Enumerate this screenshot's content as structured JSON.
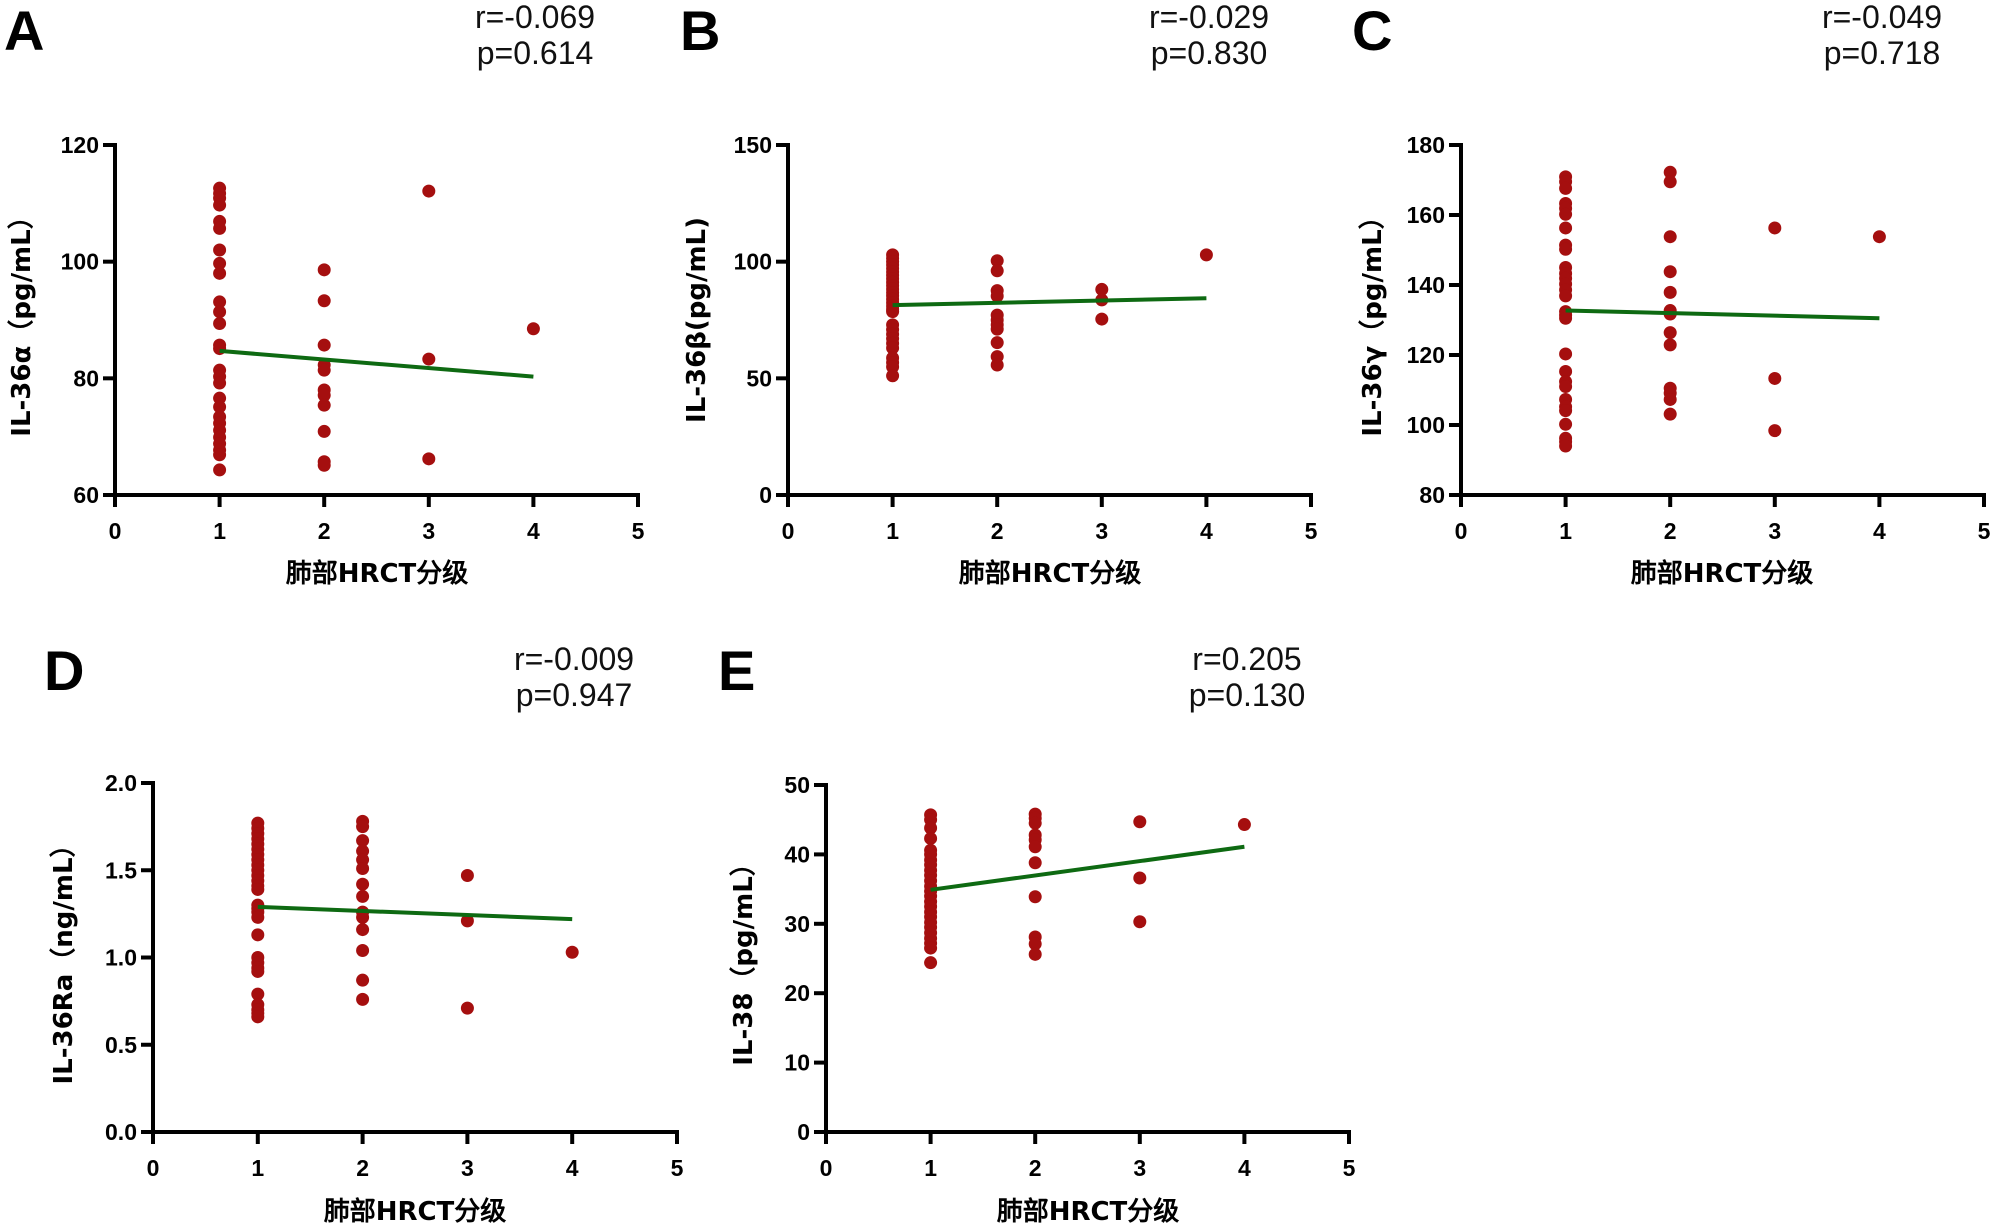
{
  "figure": {
    "colors": {
      "point": "#a50f0f",
      "fit_line": "#0e6a12",
      "axis": "#000000"
    }
  },
  "chart_data": [
    {
      "id": "A",
      "type": "scatter",
      "panel_label": "A",
      "title": "",
      "stats": {
        "r": "r=-0.069",
        "p": "p=0.614"
      },
      "xlabel": "肺部HRCT分级",
      "ylabel": "IL-36α（pg/mL）",
      "xlim": [
        0,
        5
      ],
      "ylim": [
        60,
        120
      ],
      "xticks": [
        0,
        1,
        2,
        3,
        4,
        5
      ],
      "yticks": [
        60,
        80,
        100,
        120
      ],
      "ytick_labels": [
        "60",
        "80",
        "100",
        "120"
      ],
      "grid": false,
      "points": {
        "1": [
          112.6,
          111.7,
          110.9,
          109.7,
          106.9,
          105.7,
          102.0,
          99.7,
          98.0,
          93.1,
          91.4,
          89.4,
          85.7,
          85.1,
          81.4,
          80.3,
          79.2,
          76.6,
          75.1,
          73.4,
          72.3,
          71.1,
          69.9,
          68.8,
          67.7,
          66.9,
          64.3
        ],
        "2": [
          98.6,
          93.3,
          85.7,
          82.3,
          81.4,
          78.0,
          77.1,
          75.4,
          70.9,
          65.7,
          65.1
        ],
        "3": [
          112.1,
          83.3,
          66.2
        ],
        "4": [
          88.5
        ]
      },
      "fit": {
        "x": [
          1,
          4
        ],
        "y": [
          84.7,
          80.3
        ]
      }
    },
    {
      "id": "B",
      "type": "scatter",
      "panel_label": "B",
      "title": "",
      "stats": {
        "r": "r=-0.029",
        "p": "p=0.830"
      },
      "xlabel": "肺部HRCT分级",
      "ylabel": "IL-36β(pg/mL)",
      "xlim": [
        0,
        5
      ],
      "ylim": [
        0,
        150
      ],
      "xticks": [
        0,
        1,
        2,
        3,
        4,
        5
      ],
      "yticks": [
        0,
        50,
        100,
        150
      ],
      "ytick_labels": [
        "0",
        "50",
        "100",
        "150"
      ],
      "grid": false,
      "points": {
        "1": [
          102.9,
          101.5,
          100.0,
          98.6,
          97.1,
          95.6,
          94.2,
          92.7,
          91.2,
          89.8,
          88.3,
          86.8,
          85.4,
          83.9,
          82.4,
          81.0,
          79.6,
          78.6,
          72.9,
          70.9,
          68.9,
          67.0,
          65.0,
          63.0,
          58.7,
          56.8,
          54.9,
          51.1
        ],
        "2": [
          100.4,
          96.1,
          87.6,
          85.3,
          77.1,
          75.0,
          72.9,
          71.1,
          65.3,
          59.3,
          55.7
        ],
        "3": [
          88.1,
          83.6,
          75.4
        ],
        "4": [
          102.9
        ]
      },
      "fit": {
        "x": [
          1,
          4
        ],
        "y": [
          81.4,
          84.3
        ]
      }
    },
    {
      "id": "C",
      "type": "scatter",
      "panel_label": "C",
      "title": "",
      "stats": {
        "r": "r=-0.049",
        "p": "p=0.718"
      },
      "xlabel": "肺部HRCT分级",
      "ylabel": "IL-36γ（pg/mL）",
      "xlim": [
        0,
        5
      ],
      "ylim": [
        80,
        180
      ],
      "xticks": [
        0,
        1,
        2,
        3,
        4,
        5
      ],
      "yticks": [
        80,
        100,
        120,
        140,
        160,
        180
      ],
      "ytick_labels": [
        "80",
        "100",
        "120",
        "140",
        "160",
        "180"
      ],
      "grid": false,
      "points": {
        "1": [
          170.9,
          169.5,
          167.6,
          163.3,
          161.9,
          160.2,
          156.3,
          151.4,
          150.2,
          145.0,
          143.3,
          141.9,
          140.3,
          138.6,
          136.9,
          132.4,
          131.4,
          130.5,
          120.3,
          115.3,
          112.4,
          111.0,
          107.3,
          105.2,
          104.1,
          100.2,
          96.2,
          95.2,
          94.0
        ],
        "2": [
          172.2,
          169.5,
          153.8,
          143.8,
          137.9,
          132.7,
          131.7,
          126.4,
          122.9,
          110.5,
          109.1,
          107.3,
          103.1
        ],
        "3": [
          156.3,
          113.3,
          98.4
        ],
        "4": [
          153.8
        ]
      },
      "fit": {
        "x": [
          1,
          4
        ],
        "y": [
          132.7,
          130.5
        ]
      }
    },
    {
      "id": "D",
      "type": "scatter",
      "panel_label": "D",
      "title": "",
      "stats": {
        "r": "r=-0.009",
        "p": "p=0.947"
      },
      "xlabel": "肺部HRCT分级",
      "ylabel": "IL-36Ra（ng/mL）",
      "xlim": [
        0,
        5
      ],
      "ylim": [
        0.0,
        2.0
      ],
      "xticks": [
        0,
        1,
        2,
        3,
        4,
        5
      ],
      "yticks": [
        0.0,
        0.5,
        1.0,
        1.5,
        2.0
      ],
      "ytick_labels": [
        "0.0",
        "0.5",
        "1.0",
        "1.5",
        "2.0"
      ],
      "grid": false,
      "points": {
        "1": [
          1.77,
          1.74,
          1.71,
          1.68,
          1.65,
          1.62,
          1.59,
          1.56,
          1.53,
          1.5,
          1.47,
          1.44,
          1.41,
          1.39,
          1.3,
          1.28,
          1.26,
          1.23,
          1.13,
          1.0,
          0.97,
          0.94,
          0.92,
          0.79,
          0.73,
          0.7,
          0.68,
          0.66
        ],
        "2": [
          1.78,
          1.75,
          1.67,
          1.61,
          1.56,
          1.51,
          1.42,
          1.35,
          1.26,
          1.23,
          1.16,
          1.04,
          0.87,
          0.76
        ],
        "3": [
          1.47,
          1.21,
          0.71
        ],
        "4": [
          1.03
        ]
      },
      "fit": {
        "x": [
          1,
          4
        ],
        "y": [
          1.29,
          1.22
        ]
      }
    },
    {
      "id": "E",
      "type": "scatter",
      "panel_label": "E",
      "title": "",
      "stats": {
        "r": "r=0.205",
        "p": "p=0.130"
      },
      "xlabel": "肺部HRCT分级",
      "ylabel": "IL-38（pg/mL）",
      "xlim": [
        0,
        5
      ],
      "ylim": [
        0,
        50
      ],
      "xticks": [
        0,
        1,
        2,
        3,
        4,
        5
      ],
      "yticks": [
        0,
        10,
        20,
        30,
        40,
        50
      ],
      "ytick_labels": [
        "0",
        "10",
        "20",
        "30",
        "40",
        "50"
      ],
      "grid": false,
      "points": {
        "1": [
          45.7,
          45.0,
          43.8,
          42.3,
          40.6,
          40.0,
          39.2,
          38.5,
          37.7,
          37.0,
          36.2,
          35.4,
          34.7,
          34.0,
          33.2,
          32.5,
          31.7,
          31.0,
          30.2,
          29.5,
          28.7,
          27.9,
          27.2,
          26.5,
          24.4
        ],
        "2": [
          45.8,
          45.2,
          44.5,
          42.8,
          42.1,
          41.1,
          38.8,
          33.9,
          28.1,
          27.1,
          25.6
        ],
        "3": [
          44.7,
          36.6,
          30.3
        ],
        "4": [
          44.3
        ]
      },
      "fit": {
        "x": [
          1,
          4
        ],
        "y": [
          34.9,
          41.1
        ]
      }
    }
  ]
}
